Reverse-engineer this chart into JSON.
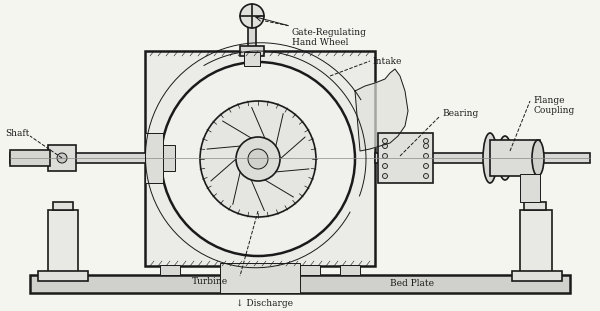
{
  "bg_color": "#f5f5f0",
  "line_color": "#1a1a1a",
  "title": "",
  "labels": {
    "shaft": "Shaft",
    "gate": "Gate-Regulating\nHand Wheel",
    "intake": "Intake",
    "turbine": "Turbine",
    "bed_plate": "Bed Plate",
    "discharge": "↓ Discharge",
    "bearing": "Bearing",
    "flange": "Flange\nCoupling"
  },
  "figsize": [
    6.0,
    3.11
  ],
  "dpi": 100
}
